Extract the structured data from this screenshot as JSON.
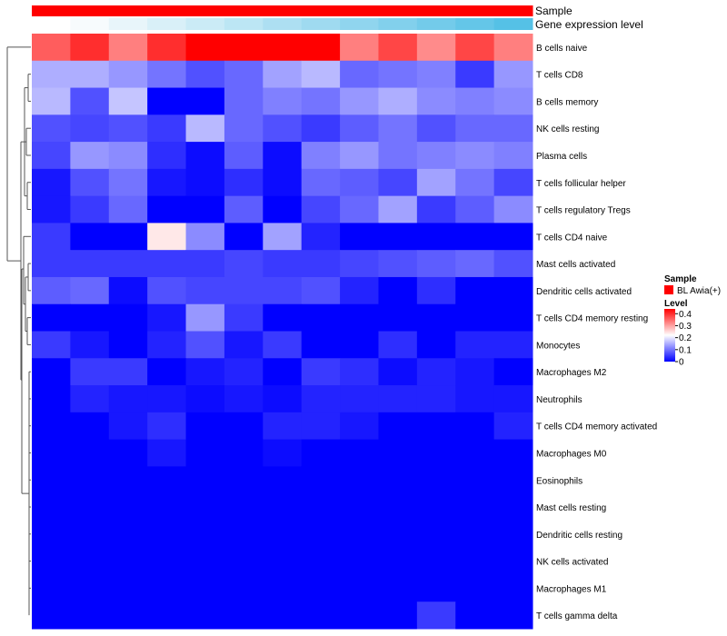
{
  "chart_data": {
    "type": "heatmap",
    "title": "",
    "annotations": {
      "sample_label": "Sample",
      "gene_label": "Gene expression level",
      "sample_color": "#ff0000",
      "gene_colors": [
        "#ffffff",
        "#f7fbfd",
        "#e8f5fa",
        "#d9f0f8",
        "#cbebf6",
        "#bce6f4",
        "#addff2",
        "#9fdaf0",
        "#90d5ee",
        "#82d0ec",
        "#73cbea",
        "#64c6e8",
        "#55c1e6"
      ]
    },
    "rows": [
      "B cells naive",
      "T cells CD8",
      "B cells memory",
      "NK cells resting",
      "Plasma cells",
      "T cells follicular helper",
      "T cells regulatory  Tregs",
      "T cells CD4 naive",
      "Mast cells activated",
      "Dendritic cells activated",
      "T cells CD4 memory resting",
      "Monocytes",
      "Macrophages M2",
      "Neutrophils",
      "T cells CD4 memory activated",
      "Macrophages M0",
      "Eosinophils",
      "Mast cells resting",
      "Dendritic cells resting",
      "NK cells activated",
      "Macrophages M1",
      "T cells gamma delta"
    ],
    "values": [
      [
        0.36,
        0.4,
        0.33,
        0.4,
        0.44,
        0.44,
        0.44,
        0.44,
        0.33,
        0.38,
        0.32,
        0.38,
        0.33
      ],
      [
        0.15,
        0.15,
        0.13,
        0.1,
        0.07,
        0.09,
        0.14,
        0.16,
        0.09,
        0.1,
        0.11,
        0.05,
        0.13
      ],
      [
        0.16,
        0.07,
        0.17,
        0.0,
        0.0,
        0.09,
        0.11,
        0.1,
        0.13,
        0.15,
        0.12,
        0.11,
        0.12
      ],
      [
        0.07,
        0.06,
        0.07,
        0.05,
        0.16,
        0.09,
        0.07,
        0.05,
        0.08,
        0.1,
        0.07,
        0.09,
        0.09
      ],
      [
        0.06,
        0.13,
        0.12,
        0.04,
        0.01,
        0.08,
        0.01,
        0.11,
        0.13,
        0.1,
        0.11,
        0.12,
        0.11
      ],
      [
        0.02,
        0.07,
        0.1,
        0.02,
        0.01,
        0.04,
        0.01,
        0.09,
        0.08,
        0.06,
        0.14,
        0.1,
        0.06
      ],
      [
        0.02,
        0.05,
        0.09,
        0.0,
        0.0,
        0.08,
        0.0,
        0.06,
        0.09,
        0.14,
        0.05,
        0.08,
        0.12
      ],
      [
        0.05,
        0.0,
        0.0,
        0.24,
        0.12,
        0.0,
        0.14,
        0.03,
        0.0,
        0.0,
        0.0,
        0.0,
        0.0
      ],
      [
        0.05,
        0.05,
        0.05,
        0.05,
        0.05,
        0.06,
        0.05,
        0.05,
        0.06,
        0.07,
        0.08,
        0.09,
        0.07
      ],
      [
        0.08,
        0.09,
        0.01,
        0.07,
        0.06,
        0.06,
        0.06,
        0.07,
        0.03,
        0.0,
        0.04,
        0.0,
        0.0
      ],
      [
        0.0,
        0.0,
        0.0,
        0.02,
        0.13,
        0.05,
        0.0,
        0.0,
        0.0,
        0.0,
        0.0,
        0.0,
        0.0
      ],
      [
        0.05,
        0.02,
        0.0,
        0.03,
        0.07,
        0.02,
        0.05,
        0.0,
        0.0,
        0.04,
        0.0,
        0.03,
        0.03
      ],
      [
        0.0,
        0.05,
        0.05,
        0.0,
        0.02,
        0.03,
        0.0,
        0.05,
        0.04,
        0.01,
        0.03,
        0.02,
        0.0
      ],
      [
        0.0,
        0.03,
        0.02,
        0.02,
        0.01,
        0.02,
        0.01,
        0.03,
        0.03,
        0.03,
        0.03,
        0.02,
        0.02
      ],
      [
        0.0,
        0.0,
        0.02,
        0.04,
        0.0,
        0.0,
        0.03,
        0.03,
        0.02,
        0.0,
        0.0,
        0.0,
        0.03
      ],
      [
        0.0,
        0.0,
        0.0,
        0.02,
        0.0,
        0.0,
        0.01,
        0.0,
        0.0,
        0.0,
        0.0,
        0.0,
        0.0
      ],
      [
        0.0,
        0.0,
        0.0,
        0.0,
        0.0,
        0.0,
        0.0,
        0.0,
        0.0,
        0.0,
        0.0,
        0.0,
        0.0
      ],
      [
        0.0,
        0.0,
        0.0,
        0.0,
        0.0,
        0.0,
        0.0,
        0.0,
        0.0,
        0.0,
        0.0,
        0.0,
        0.0
      ],
      [
        0.0,
        0.0,
        0.0,
        0.0,
        0.0,
        0.0,
        0.0,
        0.0,
        0.0,
        0.0,
        0.0,
        0.0,
        0.0
      ],
      [
        0.0,
        0.0,
        0.0,
        0.0,
        0.0,
        0.0,
        0.0,
        0.0,
        0.0,
        0.0,
        0.0,
        0.0,
        0.0
      ],
      [
        0.0,
        0.0,
        0.0,
        0.0,
        0.0,
        0.0,
        0.0,
        0.0,
        0.0,
        0.0,
        0.0,
        0.0,
        0.0
      ],
      [
        0.0,
        0.0,
        0.0,
        0.0,
        0.0,
        0.0,
        0.0,
        0.0,
        0.0,
        0.0,
        0.05,
        0.0,
        0.0
      ]
    ],
    "colorscale": {
      "min": 0,
      "max": 0.44,
      "low_color": "#0000ff",
      "mid_color": "#ffffff",
      "high_color": "#ff0000",
      "mid_value": 0.22
    },
    "legend": {
      "sample_title": "Sample",
      "sample_entry": "BL Awia(+)",
      "level_title": "Level",
      "ticks": [
        0.4,
        0.3,
        0.2,
        0.1,
        0
      ],
      "tick_labels": [
        "0.4",
        "0.3",
        "0.2",
        "0.1",
        "0"
      ],
      "placement": "right"
    },
    "dendrogram": "rows"
  }
}
